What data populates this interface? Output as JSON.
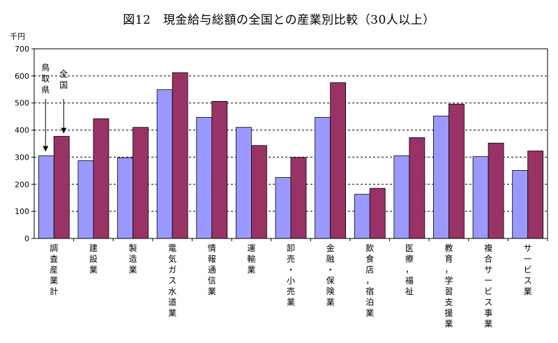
{
  "title": "図12　現金給与総額の全国との産業別比較（30人以上）",
  "chart_data": {
    "type": "bar",
    "title": "図12　現金給与総額の全国との産業別比較（30人以上）",
    "unit_label": "千円",
    "ylim": [
      0,
      700
    ],
    "yticks": [
      0,
      100,
      200,
      300,
      400,
      500,
      600,
      700
    ],
    "grid": true,
    "categories": [
      "調査産業計",
      "建設業",
      "製造業",
      "電気ガス水道業",
      "情報通信業",
      "運輸業",
      "卸売・小売業",
      "金融・保険業",
      "飲食店，宿泊業",
      "医療，福祉",
      "教育，学習支援業",
      "複合サービス事業",
      "サービス業"
    ],
    "series": [
      {
        "name": "鳥取県",
        "color": "#9999ff",
        "values": [
          305,
          287,
          298,
          549,
          447,
          410,
          225,
          447,
          163,
          305,
          452,
          302,
          251
        ]
      },
      {
        "name": "全国",
        "color": "#993366",
        "values": [
          377,
          442,
          410,
          612,
          506,
          343,
          299,
          575,
          185,
          372,
          496,
          352,
          323
        ]
      }
    ],
    "annotations": [
      {
        "text": "鳥取県",
        "series": "鳥取県"
      },
      {
        "text": "全国",
        "series": "全国"
      }
    ]
  }
}
